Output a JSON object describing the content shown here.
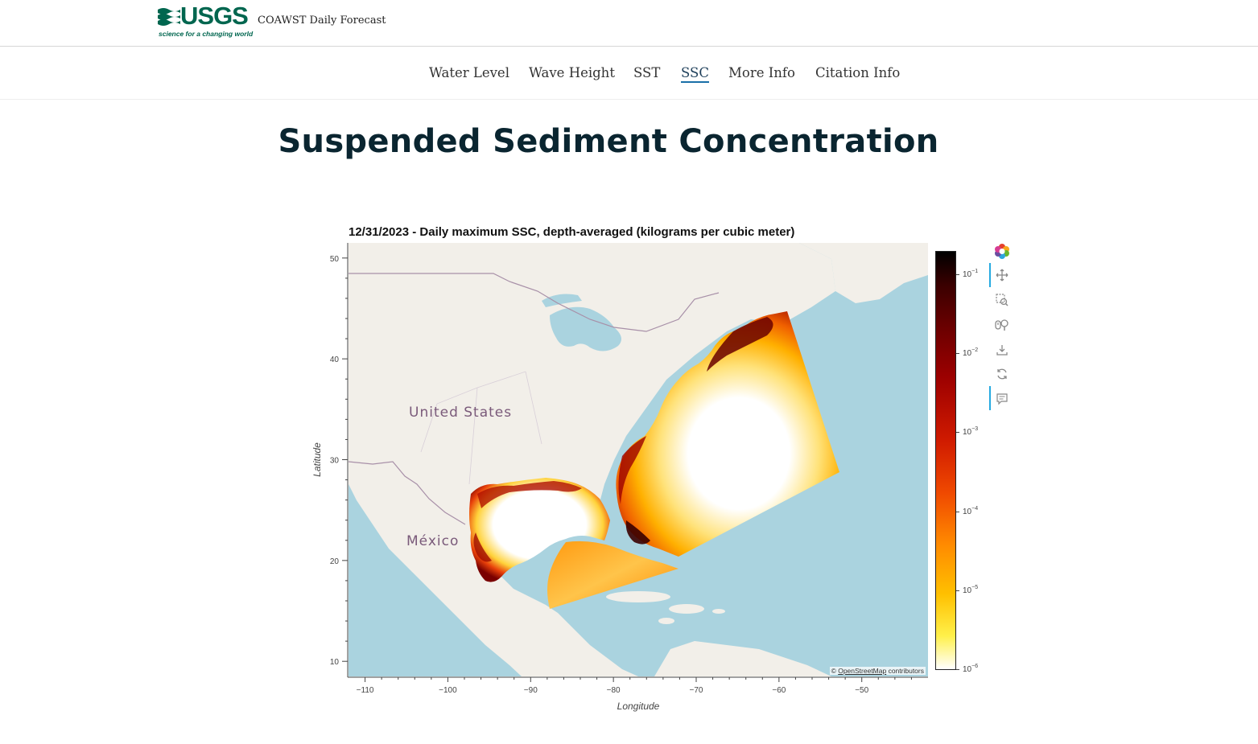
{
  "header": {
    "logo_text": "USGS",
    "logo_tagline": "science for a changing world",
    "site_title": "COAWST Daily Forecast"
  },
  "nav": {
    "items": [
      {
        "label": "Water Level",
        "active": false
      },
      {
        "label": "Wave Height",
        "active": false
      },
      {
        "label": "SST",
        "active": false
      },
      {
        "label": "SSC",
        "active": true
      },
      {
        "label": "More Info",
        "active": false
      },
      {
        "label": "Citation Info",
        "active": false
      }
    ]
  },
  "page": {
    "title": "Suspended Sediment Concentration"
  },
  "map_plot": {
    "title": "12/31/2023 - Daily maximum SSC, depth-averaged (kilograms per cubic meter)",
    "map_labels": [
      "United States",
      "México"
    ],
    "attribution_prefix": "© ",
    "attribution_link": "OpenStreetMap",
    "attribution_suffix": " contributors",
    "colors": {
      "ocean": "#aad3df",
      "land": "#f2efe9",
      "accent": "#26aae1"
    }
  },
  "chart_data": {
    "type": "heatmap",
    "title": "12/31/2023 - Daily maximum SSC, depth-averaged (kilograms per cubic meter)",
    "xlabel": "Longitude",
    "ylabel": "Latitude",
    "x_ticks": [
      "−110",
      "−100",
      "−90",
      "−80",
      "−70",
      "−60",
      "−50"
    ],
    "y_ticks": [
      "10",
      "20",
      "30",
      "40",
      "50"
    ],
    "xlim": [
      -112,
      -42
    ],
    "ylim": [
      8.5,
      51.5
    ],
    "colorbar": {
      "scale": "log",
      "colormap": "white-yellow-orange-red-black",
      "ticks": [
        {
          "base": "10",
          "exp": "−1"
        },
        {
          "base": "10",
          "exp": "−2"
        },
        {
          "base": "10",
          "exp": "−3"
        },
        {
          "base": "10",
          "exp": "−4"
        },
        {
          "base": "10",
          "exp": "−5"
        },
        {
          "base": "10",
          "exp": "−6"
        }
      ]
    }
  },
  "toolbar": {
    "tools": [
      {
        "icon": "bokeh-logo-icon"
      },
      {
        "icon": "pan-icon"
      },
      {
        "icon": "box-zoom-icon"
      },
      {
        "icon": "wheel-zoom-icon"
      },
      {
        "icon": "save-icon"
      },
      {
        "icon": "reset-icon"
      },
      {
        "icon": "hover-icon"
      }
    ]
  }
}
